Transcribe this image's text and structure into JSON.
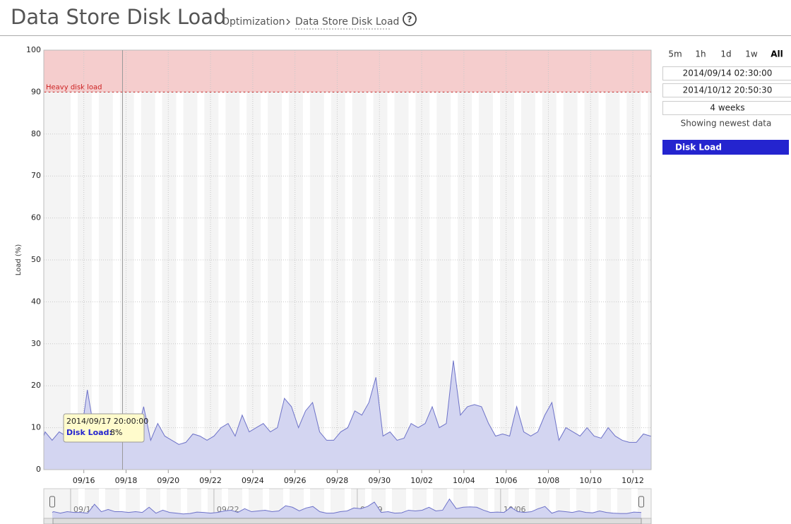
{
  "header": {
    "title": "Data Store Disk Load",
    "breadcrumb": [
      "Optimization",
      "Data Store Disk Load"
    ],
    "help": "?"
  },
  "chart_data": {
    "type": "area",
    "ylabel": "Load (%)",
    "ylim": [
      0,
      100
    ],
    "yticks": [
      0,
      10,
      20,
      30,
      40,
      50,
      60,
      70,
      80,
      90,
      100
    ],
    "grid": true,
    "xlim": [
      "2014/09/14 02:30:00",
      "2014/10/12 20:50:30"
    ],
    "xticks": [
      {
        "value": "2014/09/16 00:00:00",
        "label": "09/16"
      },
      {
        "value": "2014/09/18 00:00:00",
        "label": "09/18"
      },
      {
        "value": "2014/09/20 00:00:00",
        "label": "09/20"
      },
      {
        "value": "2014/09/22 00:00:00",
        "label": "09/22"
      },
      {
        "value": "2014/09/24 00:00:00",
        "label": "09/24"
      },
      {
        "value": "2014/09/26 00:00:00",
        "label": "09/26"
      },
      {
        "value": "2014/09/28 00:00:00",
        "label": "09/28"
      },
      {
        "value": "2014/09/30 00:00:00",
        "label": "09/30"
      },
      {
        "value": "2014/10/02 00:00:00",
        "label": "10/02"
      },
      {
        "value": "2014/10/04 00:00:00",
        "label": "10/04"
      },
      {
        "value": "2014/10/06 00:00:00",
        "label": "10/06"
      },
      {
        "value": "2014/10/08 00:00:00",
        "label": "10/08"
      },
      {
        "value": "2014/10/10 00:00:00",
        "label": "10/10"
      },
      {
        "value": "2014/10/12 00:00:00",
        "label": "10/12"
      }
    ],
    "bands": [
      {
        "from": 90,
        "to": 100,
        "label": "Heavy disk load",
        "color": "#f5cdcd",
        "line_color": "#cc1f1f"
      }
    ],
    "x": [
      "2014/09/14 02:30:00",
      "2014/09/14 04:00:00",
      "2014/09/14 12:00:00",
      "2014/09/14 20:00:00",
      "2014/09/15 04:00:00",
      "2014/09/15 12:00:00",
      "2014/09/15 20:00:00",
      "2014/09/16 04:00:00",
      "2014/09/16 12:00:00",
      "2014/09/16 20:00:00",
      "2014/09/17 04:00:00",
      "2014/09/17 12:00:00",
      "2014/09/17 20:00:00",
      "2014/09/18 04:00:00",
      "2014/09/18 12:00:00",
      "2014/09/18 20:00:00",
      "2014/09/19 04:00:00",
      "2014/09/19 12:00:00",
      "2014/09/19 20:00:00",
      "2014/09/20 04:00:00",
      "2014/09/20 12:00:00",
      "2014/09/20 20:00:00",
      "2014/09/21 04:00:00",
      "2014/09/21 12:00:00",
      "2014/09/21 20:00:00",
      "2014/09/22 04:00:00",
      "2014/09/22 12:00:00",
      "2014/09/22 20:00:00",
      "2014/09/23 04:00:00",
      "2014/09/23 12:00:00",
      "2014/09/23 20:00:00",
      "2014/09/24 04:00:00",
      "2014/09/24 12:00:00",
      "2014/09/24 20:00:00",
      "2014/09/25 04:00:00",
      "2014/09/25 12:00:00",
      "2014/09/25 20:00:00",
      "2014/09/26 04:00:00",
      "2014/09/26 12:00:00",
      "2014/09/26 20:00:00",
      "2014/09/27 04:00:00",
      "2014/09/27 12:00:00",
      "2014/09/27 20:00:00",
      "2014/09/28 04:00:00",
      "2014/09/28 12:00:00",
      "2014/09/28 20:00:00",
      "2014/09/29 04:00:00",
      "2014/09/29 12:00:00",
      "2014/09/29 20:00:00",
      "2014/09/30 04:00:00",
      "2014/09/30 12:00:00",
      "2014/09/30 20:00:00",
      "2014/10/01 04:00:00",
      "2014/10/01 12:00:00",
      "2014/10/01 20:00:00",
      "2014/10/02 04:00:00",
      "2014/10/02 12:00:00",
      "2014/10/02 20:00:00",
      "2014/10/03 04:00:00",
      "2014/10/03 12:00:00",
      "2014/10/03 20:00:00",
      "2014/10/04 04:00:00",
      "2014/10/04 12:00:00",
      "2014/10/04 20:00:00",
      "2014/10/05 04:00:00",
      "2014/10/05 12:00:00",
      "2014/10/05 20:00:00",
      "2014/10/06 04:00:00",
      "2014/10/06 12:00:00",
      "2014/10/06 20:00:00",
      "2014/10/07 04:00:00",
      "2014/10/07 12:00:00",
      "2014/10/07 20:00:00",
      "2014/10/08 04:00:00",
      "2014/10/08 12:00:00",
      "2014/10/08 20:00:00",
      "2014/10/09 04:00:00",
      "2014/10/09 12:00:00",
      "2014/10/09 20:00:00",
      "2014/10/10 04:00:00",
      "2014/10/10 12:00:00",
      "2014/10/10 20:00:00",
      "2014/10/11 04:00:00",
      "2014/10/11 12:00:00",
      "2014/10/11 20:00:00",
      "2014/10/12 04:00:00",
      "2014/10/12 12:00:00",
      "2014/10/12 20:00:00",
      "2014/10/12 20:50:30"
    ],
    "series": [
      {
        "name": "Disk Load",
        "color": "#6d72c8",
        "fill": "#d3d5f1",
        "legend_color": "#2424cf",
        "values": [
          8,
          9,
          7,
          9,
          8,
          8,
          7,
          19,
          9,
          12,
          9,
          9,
          8,
          9,
          8,
          15,
          7,
          11,
          8,
          7,
          6,
          6.5,
          8.5,
          8,
          7,
          8,
          10,
          11,
          8,
          13,
          9,
          10,
          11,
          9,
          10,
          17,
          15,
          10,
          14,
          16,
          9,
          7,
          7,
          9,
          10,
          14,
          13,
          16,
          22,
          8,
          9,
          7,
          7.5,
          11,
          10,
          11,
          15,
          10,
          11,
          26,
          13,
          15,
          15.5,
          15,
          11,
          8,
          8.5,
          8,
          15,
          9,
          8,
          9,
          13,
          16,
          7,
          10,
          9,
          8,
          10,
          8,
          7.5,
          10,
          8,
          7,
          6.5,
          6.5,
          8.5,
          8,
          8
        ]
      }
    ],
    "tooltip": {
      "title": "2014/09/17 20:00:00",
      "label": "Disk Load:",
      "value_label": "8%"
    },
    "navigator": {
      "xticks": [
        {
          "value": "2014/09/15 00:00:00",
          "label": "09/15"
        },
        {
          "value": "2014/09/22 00:00:00",
          "label": "09/22"
        },
        {
          "value": "2014/09/29 00:00:00",
          "label": "09/29"
        },
        {
          "value": "2014/10/06 00:00:00",
          "label": "10/06"
        }
      ]
    }
  },
  "side_panel": {
    "range_buttons": [
      "5m",
      "1h",
      "1d",
      "1w",
      "All"
    ],
    "start": "2014/09/14 02:30:00",
    "end": "2014/10/12 20:50:30",
    "duration": "4 weeks",
    "status": "Showing newest data"
  }
}
